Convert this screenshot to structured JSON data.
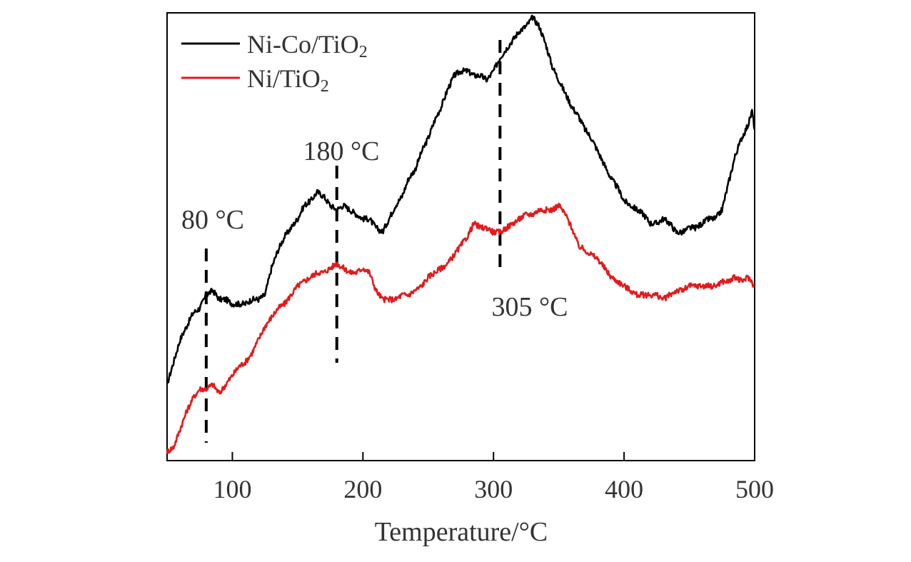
{
  "chart_data": {
    "type": "line",
    "title": "",
    "xlabel": "Temperature/°C",
    "ylabel": "",
    "xlim": [
      50,
      500
    ],
    "ylim": [
      0,
      100
    ],
    "xticks": [
      100,
      200,
      300,
      400,
      500
    ],
    "xtick_labels": [
      "100",
      "200",
      "300",
      "400",
      "500"
    ],
    "yticks_shown": false,
    "grid": false,
    "legend_position": "top-left",
    "series": [
      {
        "name": "Ni-Co/TiO2",
        "color": "#000000",
        "x": [
          50,
          55,
          60,
          65,
          70,
          75,
          80,
          85,
          90,
          95,
          100,
          105,
          110,
          115,
          120,
          125,
          130,
          135,
          140,
          145,
          150,
          155,
          160,
          165,
          170,
          175,
          180,
          185,
          190,
          195,
          200,
          205,
          210,
          215,
          220,
          225,
          230,
          235,
          240,
          245,
          250,
          255,
          260,
          265,
          270,
          275,
          280,
          285,
          290,
          295,
          300,
          305,
          310,
          315,
          320,
          325,
          330,
          335,
          340,
          345,
          350,
          355,
          360,
          365,
          370,
          375,
          380,
          385,
          390,
          395,
          400,
          405,
          410,
          415,
          420,
          425,
          430,
          435,
          440,
          445,
          450,
          455,
          460,
          465,
          470,
          475,
          480,
          485,
          490,
          495,
          498,
          500
        ],
        "y": [
          17,
          22,
          27,
          30,
          33,
          34,
          37,
          38,
          36,
          36,
          35,
          35,
          35,
          36,
          36,
          37,
          43,
          47,
          50,
          52,
          54,
          57,
          58,
          60,
          59,
          57,
          56,
          57,
          56,
          55,
          54,
          54,
          52,
          51,
          54,
          57,
          59,
          63,
          65,
          69,
          72,
          76,
          79,
          83,
          86,
          87,
          87,
          86,
          86,
          85,
          87,
          90,
          92,
          94,
          96,
          97,
          99,
          97,
          93,
          88,
          85,
          82,
          79,
          77,
          74,
          72,
          69,
          66,
          63,
          61,
          58,
          57,
          56,
          55,
          53,
          53,
          54,
          53,
          51,
          51,
          52,
          52,
          53,
          54,
          54,
          56,
          62,
          68,
          72,
          75,
          78,
          74
        ]
      },
      {
        "name": "Ni/TiO2",
        "color": "#e31a1c",
        "x": [
          50,
          55,
          60,
          65,
          70,
          75,
          80,
          85,
          90,
          95,
          100,
          105,
          110,
          115,
          120,
          125,
          130,
          135,
          140,
          145,
          150,
          155,
          160,
          165,
          170,
          175,
          180,
          185,
          190,
          195,
          200,
          205,
          210,
          215,
          220,
          225,
          230,
          235,
          240,
          245,
          250,
          255,
          260,
          265,
          270,
          275,
          280,
          285,
          290,
          295,
          300,
          305,
          310,
          315,
          320,
          325,
          330,
          335,
          340,
          345,
          350,
          355,
          360,
          365,
          370,
          375,
          380,
          385,
          390,
          395,
          400,
          405,
          410,
          415,
          420,
          425,
          430,
          435,
          440,
          445,
          450,
          455,
          460,
          465,
          470,
          475,
          480,
          485,
          490,
          495,
          500
        ],
        "y": [
          2,
          3,
          7,
          11,
          14,
          16,
          16,
          17,
          15,
          17,
          19,
          21,
          22,
          24,
          27,
          30,
          32,
          34,
          35,
          37,
          39,
          40,
          41,
          42,
          42,
          43,
          44,
          43,
          42,
          42,
          43,
          42,
          38,
          36,
          36,
          36,
          37,
          37,
          38,
          39,
          41,
          42,
          43,
          44,
          46,
          48,
          50,
          53,
          52,
          52,
          51,
          51,
          52,
          53,
          54,
          55,
          55,
          56,
          56,
          56,
          57,
          55,
          52,
          48,
          47,
          46,
          45,
          43,
          41,
          40,
          39,
          38,
          37,
          37,
          37,
          37,
          36,
          37,
          38,
          38,
          39,
          39,
          39,
          39,
          39,
          40,
          40,
          41,
          40,
          41,
          39
        ]
      }
    ],
    "annotations": [
      {
        "text": "80 °C",
        "x": 80
      },
      {
        "text": "180 °C",
        "x": 180
      },
      {
        "text": "305 °C",
        "x": 305
      }
    ]
  }
}
